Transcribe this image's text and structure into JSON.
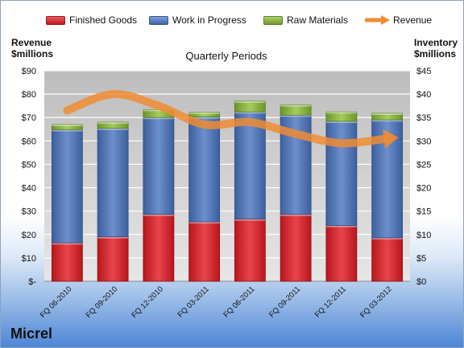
{
  "legend": {
    "finished_goods": "Finished Goods",
    "work_in_progress": "Work in Progress",
    "raw_materials": "Raw Materials",
    "revenue": "Revenue"
  },
  "axis_titles": {
    "left": "Revenue\n$millions",
    "right": "Inventory\n$millions"
  },
  "company": "Micrel",
  "colors": {
    "finished_goods": "#d9262c",
    "work_in_progress": "#4f74b2",
    "raw_materials": "#8ab33f",
    "revenue": "#f08c33",
    "plot_background": "#c8c8c8"
  },
  "chart_data": {
    "type": "bar",
    "stacked": true,
    "title": "Quarterly Periods",
    "categories": [
      "FQ 06-2010",
      "FQ 09-2010",
      "FQ 12-2010",
      "FQ 03-2011",
      "FQ 06-2011",
      "FQ 09-2011",
      "FQ 12-2011",
      "FQ 03-2012"
    ],
    "series": [
      {
        "name": "Finished Goods",
        "axis": "right",
        "values": [
          8.2,
          9.5,
          14.3,
          12.7,
          13.3,
          14.3,
          11.9,
          9.3
        ]
      },
      {
        "name": "Work in Progress",
        "axis": "right",
        "values": [
          24.2,
          23.2,
          20.7,
          22.4,
          22.9,
          21.2,
          22.3,
          25.2
        ]
      },
      {
        "name": "Raw Materials",
        "axis": "right",
        "values": [
          1.1,
          1.3,
          1.7,
          1.0,
          2.3,
          2.2,
          2.0,
          1.4
        ]
      },
      {
        "name": "Revenue",
        "type": "line",
        "axis": "left",
        "values": [
          73,
          80,
          75,
          67,
          68,
          63,
          59,
          61
        ]
      }
    ],
    "ylabel_left": "Revenue $millions",
    "ylabel_right": "Inventory $millions",
    "ylim_left": [
      0,
      90
    ],
    "ylim_right": [
      0,
      45
    ],
    "left_ticks": [
      "$-",
      "$10",
      "$20",
      "$30",
      "$40",
      "$50",
      "$60",
      "$70",
      "$80",
      "$90"
    ],
    "right_ticks": [
      "$0",
      "$5",
      "$10",
      "$15",
      "$20",
      "$25",
      "$30",
      "$35",
      "$40",
      "$45"
    ],
    "grid": true,
    "legend_position": "top"
  }
}
